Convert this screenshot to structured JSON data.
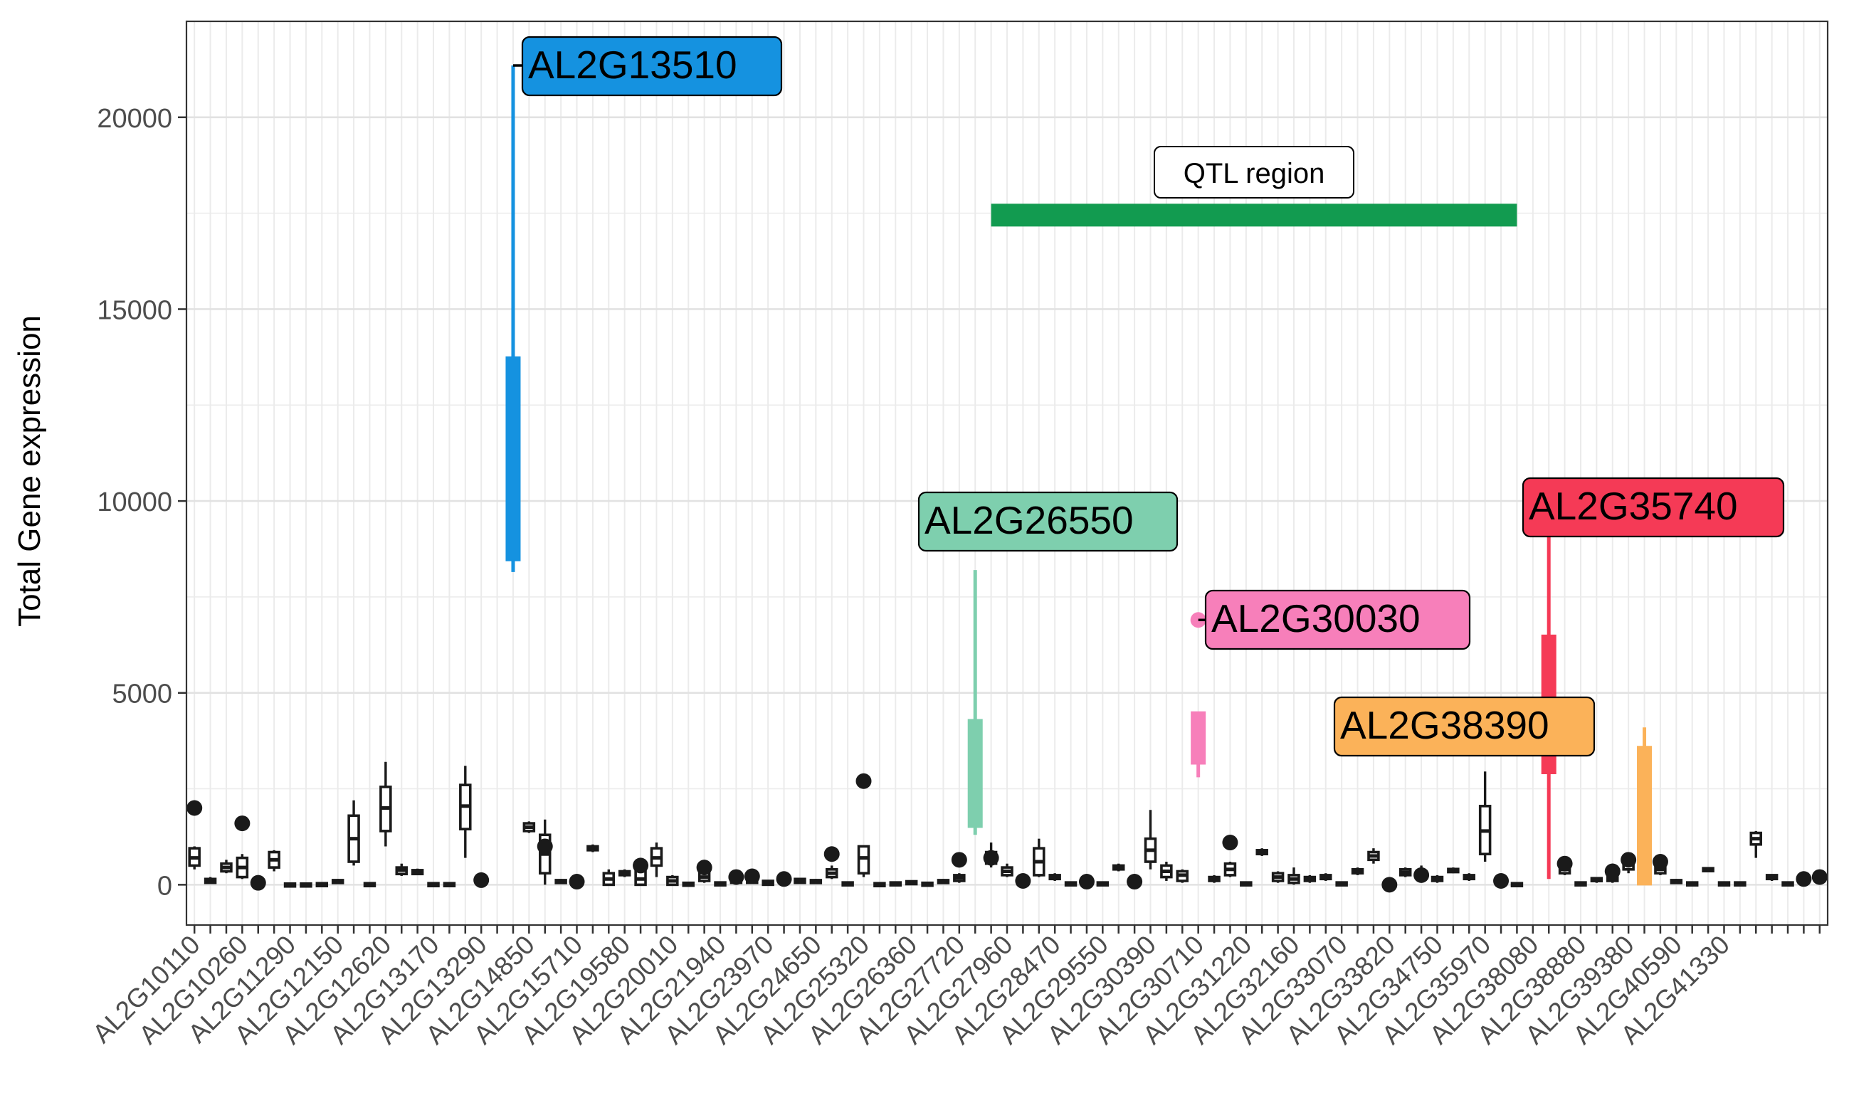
{
  "chart_data": {
    "type": "boxplot",
    "ylabel": "Total Gene expression",
    "xlabel": "",
    "ylim": [
      -1050,
      22500
    ],
    "y_ticks": [
      0,
      5000,
      10000,
      15000,
      20000
    ],
    "grid": true,
    "x_tick_labels": [
      "AL2G10110",
      "AL2G10260",
      "AL2G11290",
      "AL2G12150",
      "AL2G12620",
      "AL2G13170",
      "AL2G13290",
      "AL2G14850",
      "AL2G15710",
      "AL2G19580",
      "AL2G20010",
      "AL2G21940",
      "AL2G23970",
      "AL2G24650",
      "AL2G25320",
      "AL2G26360",
      "AL2G27720",
      "AL2G27960",
      "AL2G28470",
      "AL2G29550",
      "AL2G30390",
      "AL2G30710",
      "AL2G31220",
      "AL2G32160",
      "AL2G33070",
      "AL2G33820",
      "AL2G34750",
      "AL2G35970",
      "AL2G38080",
      "AL2G38880",
      "AL2G39380",
      "AL2G40590",
      "AL2G41330"
    ],
    "qtl_region": {
      "label": "QTL region",
      "y": 17450,
      "x_start_gene_index": 50,
      "x_end_gene_index": 83,
      "color": "#129b50"
    },
    "highlighted_genes": [
      {
        "name": "AL2G13510",
        "gene_index": 20,
        "q1": 8450,
        "median": 11000,
        "q3": 13750,
        "whisker_low": 8150,
        "whisker_high": 21350,
        "color": "#1592e0"
      },
      {
        "name": "AL2G26550",
        "gene_index": 49,
        "q1": 1500,
        "median": 2900,
        "q3": 4300,
        "whisker_low": 1300,
        "whisker_high": 8200,
        "color": "#7ecfae"
      },
      {
        "name": "AL2G30030",
        "gene_index": 63,
        "q1": 3150,
        "median": 3900,
        "q3": 4500,
        "whisker_low": 2800,
        "whisker_high": 4500,
        "outlier": 6900,
        "color": "#f77fba"
      },
      {
        "name": "AL2G35740",
        "gene_index": 85,
        "q1": 2900,
        "median": 4700,
        "q3": 6500,
        "whisker_low": 150,
        "whisker_high": 9100,
        "color": "#f53a56"
      },
      {
        "name": "AL2G38390",
        "gene_index": 91,
        "q1": 0,
        "median": 1800,
        "q3": 3600,
        "whisker_low": 0,
        "whisker_high": 4100,
        "color": "#fbb259"
      }
    ],
    "other_genes": [
      {
        "gene_index": 0,
        "q1": 500,
        "median": 700,
        "q3": 950,
        "whisker_low": 400,
        "whisker_high": 1000,
        "outlier": 2000
      },
      {
        "gene_index": 1,
        "q1": 50,
        "median": 100,
        "q3": 150,
        "whisker_low": 30,
        "whisker_high": 200
      },
      {
        "gene_index": 2,
        "q1": 350,
        "median": 450,
        "q3": 550,
        "whisker_low": 300,
        "whisker_high": 650
      },
      {
        "gene_index": 3,
        "q1": 200,
        "median": 450,
        "q3": 700,
        "whisker_low": 150,
        "whisker_high": 800,
        "outlier": 1600
      },
      {
        "gene_index": 4,
        "q1": 0,
        "median": 20,
        "q3": 40,
        "whisker_low": 0,
        "whisker_high": 60,
        "outlier": 50
      },
      {
        "gene_index": 5,
        "q1": 450,
        "median": 650,
        "q3": 850,
        "whisker_low": 350,
        "whisker_high": 900
      },
      {
        "gene_index": 6,
        "q1": 0,
        "median": 10,
        "q3": 30,
        "whisker_low": 0,
        "whisker_high": 40
      },
      {
        "gene_index": 7,
        "q1": 0,
        "median": 10,
        "q3": 30,
        "whisker_low": 0,
        "whisker_high": 40
      },
      {
        "gene_index": 8,
        "q1": 0,
        "median": 20,
        "q3": 40,
        "whisker_low": 0,
        "whisker_high": 50
      },
      {
        "gene_index": 9,
        "q1": 50,
        "median": 80,
        "q3": 120,
        "whisker_low": 30,
        "whisker_high": 150
      },
      {
        "gene_index": 10,
        "q1": 600,
        "median": 1200,
        "q3": 1800,
        "whisker_low": 500,
        "whisker_high": 2200
      },
      {
        "gene_index": 11,
        "q1": 0,
        "median": 10,
        "q3": 40,
        "whisker_low": 0,
        "whisker_high": 60
      },
      {
        "gene_index": 12,
        "q1": 1400,
        "median": 2000,
        "q3": 2550,
        "whisker_low": 1000,
        "whisker_high": 3200
      },
      {
        "gene_index": 13,
        "q1": 280,
        "median": 380,
        "q3": 450,
        "whisker_low": 230,
        "whisker_high": 550
      },
      {
        "gene_index": 14,
        "q1": 280,
        "median": 330,
        "q3": 380,
        "whisker_low": 250,
        "whisker_high": 420
      },
      {
        "gene_index": 15,
        "q1": 0,
        "median": 20,
        "q3": 40,
        "whisker_low": 0,
        "whisker_high": 60
      },
      {
        "gene_index": 16,
        "q1": 0,
        "median": 20,
        "q3": 40,
        "whisker_low": 0,
        "whisker_high": 60
      },
      {
        "gene_index": 17,
        "q1": 1450,
        "median": 2050,
        "q3": 2600,
        "whisker_low": 700,
        "whisker_high": 3100
      },
      {
        "gene_index": 18,
        "q1": 50,
        "median": 100,
        "q3": 150,
        "whisker_low": 30,
        "whisker_high": 200,
        "outlier": 120
      },
      {
        "gene_index": 21,
        "q1": 1400,
        "median": 1500,
        "q3": 1600,
        "whisker_low": 1350,
        "whisker_high": 1650
      },
      {
        "gene_index": 22,
        "q1": 300,
        "median": 800,
        "q3": 1300,
        "whisker_low": 0,
        "whisker_high": 1700,
        "outlier": 1000
      },
      {
        "gene_index": 23,
        "q1": 50,
        "median": 80,
        "q3": 120,
        "whisker_low": 30,
        "whisker_high": 150
      },
      {
        "gene_index": 24,
        "q1": 50,
        "median": 80,
        "q3": 120,
        "whisker_low": 30,
        "whisker_high": 150,
        "outlier": 80
      },
      {
        "gene_index": 25,
        "q1": 900,
        "median": 950,
        "q3": 1000,
        "whisker_low": 850,
        "whisker_high": 1050
      },
      {
        "gene_index": 26,
        "q1": 0,
        "median": 150,
        "q3": 300,
        "whisker_low": 0,
        "whisker_high": 400
      },
      {
        "gene_index": 27,
        "q1": 250,
        "median": 300,
        "q3": 350,
        "whisker_low": 200,
        "whisker_high": 400
      },
      {
        "gene_index": 28,
        "q1": 0,
        "median": 150,
        "q3": 350,
        "whisker_low": 0,
        "whisker_high": 400,
        "outlier": 500
      },
      {
        "gene_index": 29,
        "q1": 500,
        "median": 700,
        "q3": 950,
        "whisker_low": 200,
        "whisker_high": 1100
      },
      {
        "gene_index": 30,
        "q1": 0,
        "median": 100,
        "q3": 200,
        "whisker_low": 0,
        "whisker_high": 250
      },
      {
        "gene_index": 31,
        "q1": 0,
        "median": 20,
        "q3": 50,
        "whisker_low": 0,
        "whisker_high": 80
      },
      {
        "gene_index": 32,
        "q1": 100,
        "median": 200,
        "q3": 300,
        "whisker_low": 50,
        "whisker_high": 350,
        "outlier": 450
      },
      {
        "gene_index": 33,
        "q1": 0,
        "median": 30,
        "q3": 60,
        "whisker_low": 0,
        "whisker_high": 80
      },
      {
        "gene_index": 34,
        "q1": 50,
        "median": 120,
        "q3": 200,
        "whisker_low": 20,
        "whisker_high": 250,
        "outlier": 200
      },
      {
        "gene_index": 35,
        "q1": 50,
        "median": 150,
        "q3": 220,
        "whisker_low": 20,
        "whisker_high": 250,
        "outlier": 220
      },
      {
        "gene_index": 36,
        "q1": 0,
        "median": 50,
        "q3": 100,
        "whisker_low": 0,
        "whisker_high": 120
      },
      {
        "gene_index": 37,
        "q1": 50,
        "median": 100,
        "q3": 150,
        "whisker_low": 20,
        "whisker_high": 200,
        "outlier": 150
      },
      {
        "gene_index": 38,
        "q1": 50,
        "median": 100,
        "q3": 150,
        "whisker_low": 20,
        "whisker_high": 180
      },
      {
        "gene_index": 39,
        "q1": 50,
        "median": 80,
        "q3": 120,
        "whisker_low": 30,
        "whisker_high": 150
      },
      {
        "gene_index": 40,
        "q1": 200,
        "median": 300,
        "q3": 400,
        "whisker_low": 150,
        "whisker_high": 500,
        "outlier": 800
      },
      {
        "gene_index": 41,
        "q1": 0,
        "median": 30,
        "q3": 60,
        "whisker_low": 0,
        "whisker_high": 80
      },
      {
        "gene_index": 42,
        "q1": 300,
        "median": 700,
        "q3": 1000,
        "whisker_low": 200,
        "whisker_high": 1000,
        "outlier": 2700
      },
      {
        "gene_index": 43,
        "q1": 0,
        "median": 20,
        "q3": 40,
        "whisker_low": 0,
        "whisker_high": 60
      },
      {
        "gene_index": 44,
        "q1": 0,
        "median": 30,
        "q3": 60,
        "whisker_low": 0,
        "whisker_high": 80
      },
      {
        "gene_index": 45,
        "q1": 40,
        "median": 60,
        "q3": 90,
        "whisker_low": 20,
        "whisker_high": 110
      },
      {
        "gene_index": 46,
        "q1": 0,
        "median": 20,
        "q3": 50,
        "whisker_low": 0,
        "whisker_high": 70
      },
      {
        "gene_index": 47,
        "q1": 50,
        "median": 80,
        "q3": 120,
        "whisker_low": 30,
        "whisker_high": 150
      },
      {
        "gene_index": 48,
        "q1": 100,
        "median": 180,
        "q3": 250,
        "whisker_low": 50,
        "whisker_high": 300,
        "outlier": 650
      },
      {
        "gene_index": 50,
        "q1": 550,
        "median": 700,
        "q3": 850,
        "whisker_low": 450,
        "whisker_high": 1100,
        "outlier": 700
      },
      {
        "gene_index": 51,
        "q1": 250,
        "median": 350,
        "q3": 450,
        "whisker_low": 200,
        "whisker_high": 550
      },
      {
        "gene_index": 52,
        "q1": 0,
        "median": 50,
        "q3": 100,
        "whisker_low": 0,
        "whisker_high": 120,
        "outlier": 100
      },
      {
        "gene_index": 53,
        "q1": 250,
        "median": 600,
        "q3": 950,
        "whisker_low": 200,
        "whisker_high": 1200
      },
      {
        "gene_index": 54,
        "q1": 150,
        "median": 200,
        "q3": 250,
        "whisker_low": 100,
        "whisker_high": 300
      },
      {
        "gene_index": 55,
        "q1": 0,
        "median": 30,
        "q3": 60,
        "whisker_low": 0,
        "whisker_high": 80
      },
      {
        "gene_index": 56,
        "q1": 0,
        "median": 50,
        "q3": 100,
        "whisker_low": 0,
        "whisker_high": 120,
        "outlier": 80
      },
      {
        "gene_index": 57,
        "q1": 0,
        "median": 30,
        "q3": 60,
        "whisker_low": 0,
        "whisker_high": 80
      },
      {
        "gene_index": 58,
        "q1": 400,
        "median": 450,
        "q3": 500,
        "whisker_low": 350,
        "whisker_high": 550
      },
      {
        "gene_index": 59,
        "q1": 50,
        "median": 80,
        "q3": 120,
        "whisker_low": 30,
        "whisker_high": 150,
        "outlier": 80
      },
      {
        "gene_index": 60,
        "q1": 600,
        "median": 900,
        "q3": 1200,
        "whisker_low": 400,
        "whisker_high": 1950
      },
      {
        "gene_index": 61,
        "q1": 200,
        "median": 350,
        "q3": 500,
        "whisker_low": 100,
        "whisker_high": 600
      },
      {
        "gene_index": 62,
        "q1": 100,
        "median": 250,
        "q3": 350,
        "whisker_low": 50,
        "whisker_high": 400
      },
      {
        "gene_index": 64,
        "q1": 100,
        "median": 150,
        "q3": 200,
        "whisker_low": 50,
        "whisker_high": 250
      },
      {
        "gene_index": 65,
        "q1": 250,
        "median": 400,
        "q3": 550,
        "whisker_low": 200,
        "whisker_high": 600,
        "outlier": 1100
      },
      {
        "gene_index": 66,
        "q1": 0,
        "median": 30,
        "q3": 60,
        "whisker_low": 0,
        "whisker_high": 80
      },
      {
        "gene_index": 67,
        "q1": 800,
        "median": 850,
        "q3": 900,
        "whisker_low": 750,
        "whisker_high": 950
      },
      {
        "gene_index": 68,
        "q1": 100,
        "median": 200,
        "q3": 300,
        "whisker_low": 50,
        "whisker_high": 350
      },
      {
        "gene_index": 69,
        "q1": 50,
        "median": 150,
        "q3": 250,
        "whisker_low": 0,
        "whisker_high": 450
      },
      {
        "gene_index": 70,
        "q1": 100,
        "median": 150,
        "q3": 200,
        "whisker_low": 50,
        "whisker_high": 250
      },
      {
        "gene_index": 71,
        "q1": 150,
        "median": 200,
        "q3": 250,
        "whisker_low": 100,
        "whisker_high": 300
      },
      {
        "gene_index": 72,
        "q1": 0,
        "median": 30,
        "q3": 60,
        "whisker_low": 0,
        "whisker_high": 80
      },
      {
        "gene_index": 73,
        "q1": 300,
        "median": 350,
        "q3": 400,
        "whisker_low": 250,
        "whisker_high": 450
      },
      {
        "gene_index": 74,
        "q1": 650,
        "median": 750,
        "q3": 850,
        "whisker_low": 550,
        "whisker_high": 950
      },
      {
        "gene_index": 75,
        "q1": 0,
        "median": 20,
        "q3": 40,
        "whisker_low": 0,
        "whisker_high": 60,
        "outlier": 0
      },
      {
        "gene_index": 76,
        "q1": 250,
        "median": 320,
        "q3": 400,
        "whisker_low": 200,
        "whisker_high": 450
      },
      {
        "gene_index": 77,
        "q1": 200,
        "median": 280,
        "q3": 350,
        "whisker_low": 100,
        "whisker_high": 500,
        "outlier": 250
      },
      {
        "gene_index": 78,
        "q1": 100,
        "median": 150,
        "q3": 200,
        "whisker_low": 50,
        "whisker_high": 250
      },
      {
        "gene_index": 79,
        "q1": 330,
        "median": 370,
        "q3": 410,
        "whisker_low": 300,
        "whisker_high": 450
      },
      {
        "gene_index": 80,
        "q1": 150,
        "median": 200,
        "q3": 250,
        "whisker_low": 100,
        "whisker_high": 300
      },
      {
        "gene_index": 81,
        "q1": 800,
        "median": 1400,
        "q3": 2050,
        "whisker_low": 600,
        "whisker_high": 2950
      },
      {
        "gene_index": 82,
        "q1": 0,
        "median": 50,
        "q3": 100,
        "whisker_low": 0,
        "whisker_high": 120,
        "outlier": 100
      },
      {
        "gene_index": 83,
        "q1": 0,
        "median": 20,
        "q3": 40,
        "whisker_low": 0,
        "whisker_high": 60
      },
      {
        "gene_index": 86,
        "q1": 300,
        "median": 400,
        "q3": 500,
        "whisker_low": 250,
        "whisker_high": 550,
        "outlier": 550
      },
      {
        "gene_index": 87,
        "q1": 0,
        "median": 30,
        "q3": 60,
        "whisker_low": 0,
        "whisker_high": 80
      },
      {
        "gene_index": 88,
        "q1": 100,
        "median": 130,
        "q3": 170,
        "whisker_low": 50,
        "whisker_high": 200
      },
      {
        "gene_index": 89,
        "q1": 100,
        "median": 150,
        "q3": 200,
        "whisker_low": 50,
        "whisker_high": 250,
        "outlier": 350
      },
      {
        "gene_index": 90,
        "q1": 400,
        "median": 550,
        "q3": 700,
        "whisker_low": 300,
        "whisker_high": 750,
        "outlier": 650
      },
      {
        "gene_index": 92,
        "q1": 300,
        "median": 400,
        "q3": 500,
        "whisker_low": 250,
        "whisker_high": 550,
        "outlier": 600
      },
      {
        "gene_index": 93,
        "q1": 50,
        "median": 80,
        "q3": 120,
        "whisker_low": 30,
        "whisker_high": 150
      },
      {
        "gene_index": 94,
        "q1": 0,
        "median": 30,
        "q3": 60,
        "whisker_low": 0,
        "whisker_high": 80
      },
      {
        "gene_index": 95,
        "q1": 370,
        "median": 400,
        "q3": 430,
        "whisker_low": 350,
        "whisker_high": 450
      },
      {
        "gene_index": 96,
        "q1": 0,
        "median": 30,
        "q3": 60,
        "whisker_low": 0,
        "whisker_high": 80
      },
      {
        "gene_index": 97,
        "q1": 0,
        "median": 30,
        "q3": 60,
        "whisker_low": 0,
        "whisker_high": 80
      },
      {
        "gene_index": 98,
        "q1": 1050,
        "median": 1200,
        "q3": 1350,
        "whisker_low": 700,
        "whisker_high": 1400
      },
      {
        "gene_index": 99,
        "q1": 150,
        "median": 200,
        "q3": 250,
        "whisker_low": 100,
        "whisker_high": 250
      },
      {
        "gene_index": 100,
        "q1": 0,
        "median": 30,
        "q3": 60,
        "whisker_low": 0,
        "whisker_high": 80
      },
      {
        "gene_index": 101,
        "q1": 50,
        "median": 100,
        "q3": 150,
        "whisker_low": 30,
        "whisker_high": 200,
        "outlier": 150
      },
      {
        "gene_index": 102,
        "q1": 100,
        "median": 150,
        "q3": 200,
        "whisker_low": 50,
        "whisker_high": 250,
        "outlier": 200
      }
    ]
  }
}
